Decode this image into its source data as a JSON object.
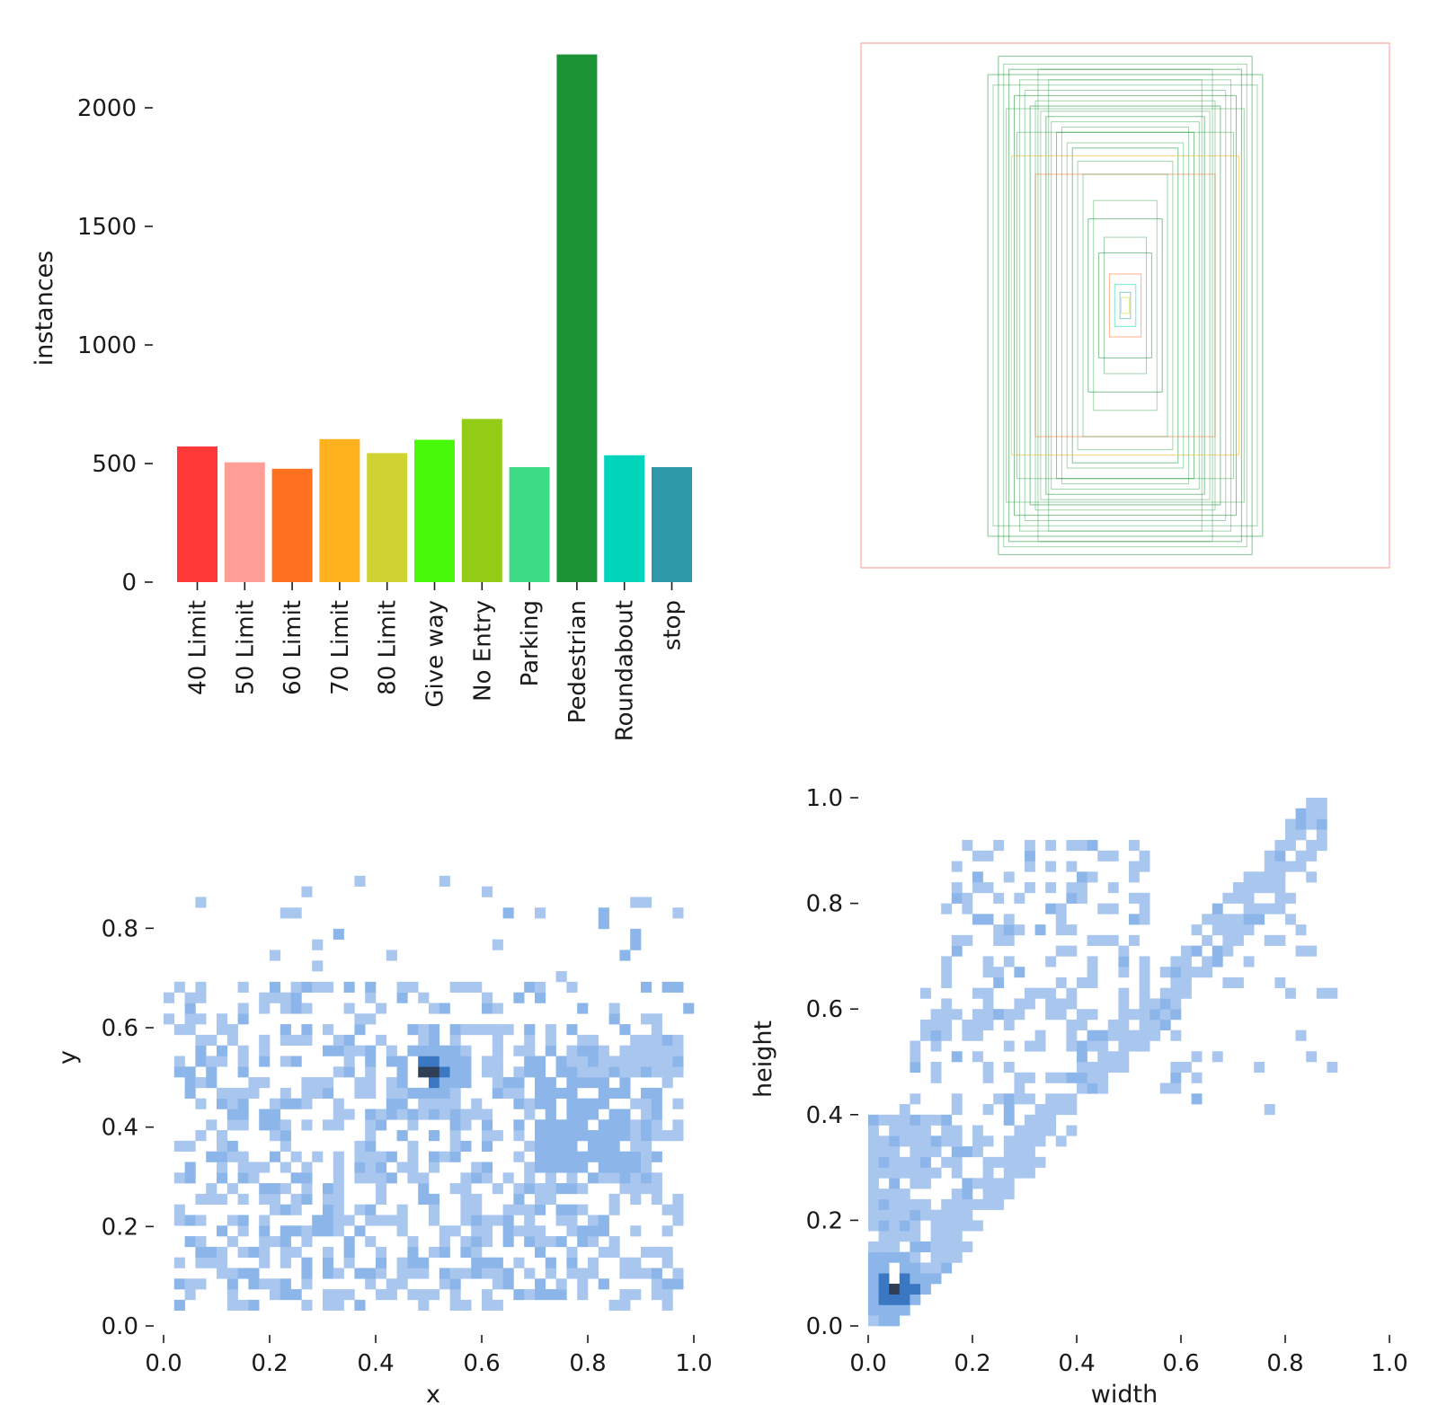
{
  "chart_data": [
    {
      "type": "bar",
      "title": "",
      "xlabel": "",
      "ylabel": "instances",
      "ylim": [
        0,
        2250
      ],
      "yticks": [
        0,
        500,
        1000,
        1500,
        2000
      ],
      "ytick_labels": [
        "0",
        "500",
        "1000",
        "1500",
        "2000"
      ],
      "categories": [
        "40 Limit",
        "50 Limit",
        "60 Limit",
        "70 Limit",
        "80 Limit",
        "Give way",
        "No Entry",
        "Parking",
        "Pedestrian",
        "Roundabout",
        "stop"
      ],
      "values": [
        572,
        505,
        478,
        603,
        544,
        600,
        688,
        485,
        2225,
        535,
        485
      ],
      "colors": [
        "#ff3838",
        "#ff9d97",
        "#ff701f",
        "#ffb21d",
        "#cfd231",
        "#48f90a",
        "#92cc17",
        "#3ddb86",
        "#1a9334",
        "#00d4bb",
        "#2c99a8"
      ]
    },
    {
      "type": "box-overlay",
      "title": "",
      "description_units": "normalized width/height",
      "boxes": [
        {
          "w": 1.0,
          "h": 1.0,
          "color": "#ff9d97"
        },
        {
          "w": 0.48,
          "h": 0.95,
          "color": "#1a9334"
        },
        {
          "w": 0.52,
          "h": 0.88,
          "color": "#1a9334"
        },
        {
          "w": 0.44,
          "h": 0.9,
          "color": "#1a9334"
        },
        {
          "w": 0.42,
          "h": 0.8,
          "color": "#1a9334"
        },
        {
          "w": 0.36,
          "h": 0.76,
          "color": "#1a9334"
        },
        {
          "w": 0.3,
          "h": 0.72,
          "color": "#1a9334"
        },
        {
          "w": 0.26,
          "h": 0.66,
          "color": "#1a9334"
        },
        {
          "w": 0.2,
          "h": 0.6,
          "color": "#1a9334"
        },
        {
          "w": 0.43,
          "h": 0.57,
          "color": "#ffb21d"
        },
        {
          "w": 0.34,
          "h": 0.5,
          "color": "#ff701f"
        },
        {
          "w": 0.14,
          "h": 0.33,
          "color": "#1a9334"
        },
        {
          "w": 0.1,
          "h": 0.2,
          "color": "#1a9334"
        },
        {
          "w": 0.06,
          "h": 0.12,
          "color": "#ff701f"
        },
        {
          "w": 0.04,
          "h": 0.08,
          "color": "#00d4bb"
        },
        {
          "w": 0.02,
          "h": 0.05,
          "color": "#2c99a8"
        },
        {
          "w": 0.015,
          "h": 0.03,
          "color": "#cfd231"
        }
      ]
    },
    {
      "type": "heatmap",
      "title": "",
      "xlabel": "x",
      "ylabel": "y",
      "xlim": [
        0,
        1
      ],
      "ylim": [
        0,
        0.91
      ],
      "xtick_labels": [
        "0.0",
        "0.2",
        "0.4",
        "0.6",
        "0.8",
        "1.0"
      ],
      "ytick_labels": [
        "0.0",
        "0.2",
        "0.4",
        "0.6",
        "0.8"
      ],
      "peak": {
        "x": 0.5,
        "y": 0.5
      },
      "secondary_density": {
        "x": 0.78,
        "y": 0.43
      }
    },
    {
      "type": "heatmap",
      "title": "",
      "xlabel": "width",
      "ylabel": "height",
      "xlim": [
        0,
        1
      ],
      "ylim": [
        0,
        1
      ],
      "xtick_labels": [
        "0.0",
        "0.2",
        "0.4",
        "0.6",
        "0.8",
        "1.0"
      ],
      "ytick_labels": [
        "0.0",
        "0.2",
        "0.4",
        "0.6",
        "0.8",
        "1.0"
      ],
      "peak": {
        "x": 0.05,
        "y": 0.07
      }
    }
  ]
}
